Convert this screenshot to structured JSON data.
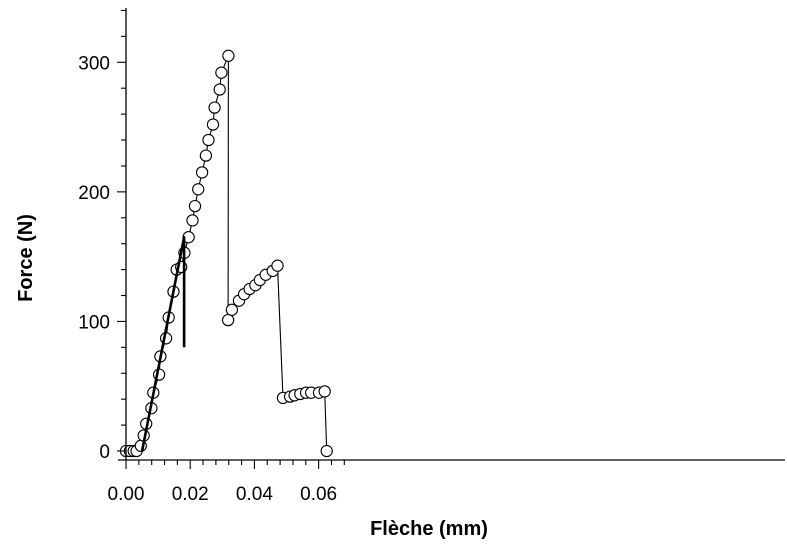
{
  "chart_data": {
    "type": "scatter",
    "xlabel": "Flèche (mm)",
    "ylabel": "Force (N)",
    "xlim": [
      0,
      0.068
    ],
    "ylim": [
      0,
      340
    ],
    "x_ticks": [
      "0.00",
      "0.02",
      "0.04",
      "0.06"
    ],
    "y_ticks": [
      "0",
      "100",
      "200",
      "300"
    ],
    "grid": false,
    "series": [
      {
        "style": "line+open-circle-markers",
        "color": "#000000",
        "points": [
          [
            0.0,
            0
          ],
          [
            0.0012,
            0
          ],
          [
            0.0024,
            0
          ],
          [
            0.0033,
            0
          ],
          [
            0.0046,
            4
          ],
          [
            0.0055,
            12
          ],
          [
            0.0063,
            21
          ],
          [
            0.0079,
            33
          ],
          [
            0.0085,
            45
          ],
          [
            0.0103,
            59
          ],
          [
            0.0107,
            73
          ],
          [
            0.0125,
            87
          ],
          [
            0.0133,
            103
          ],
          [
            0.0148,
            123
          ],
          [
            0.0158,
            140
          ],
          [
            0.0172,
            142
          ],
          [
            0.0182,
            153
          ],
          [
            0.0195,
            165
          ],
          [
            0.0207,
            178
          ],
          [
            0.0215,
            189
          ],
          [
            0.0225,
            202
          ],
          [
            0.0237,
            215
          ],
          [
            0.0249,
            228
          ],
          [
            0.0257,
            240
          ],
          [
            0.0271,
            252
          ],
          [
            0.0276,
            265
          ],
          [
            0.0292,
            279
          ],
          [
            0.0297,
            292
          ],
          [
            0.0319,
            305
          ],
          [
            0.0318,
            101
          ],
          [
            0.033,
            109
          ],
          [
            0.0352,
            116
          ],
          [
            0.0368,
            121
          ],
          [
            0.0385,
            125
          ],
          [
            0.0403,
            128
          ],
          [
            0.0417,
            132
          ],
          [
            0.0435,
            136
          ],
          [
            0.0457,
            139
          ],
          [
            0.0472,
            143
          ],
          [
            0.0489,
            41
          ],
          [
            0.0511,
            42
          ],
          [
            0.0525,
            43
          ],
          [
            0.0543,
            44
          ],
          [
            0.0561,
            45
          ],
          [
            0.0577,
            45
          ],
          [
            0.0601,
            45
          ],
          [
            0.0619,
            46
          ],
          [
            0.0625,
            0
          ]
        ]
      },
      {
        "style": "bold-line",
        "color": "#000000",
        "points": [
          [
            0.005,
            0
          ],
          [
            0.0181,
            165
          ],
          [
            0.0181,
            80
          ]
        ]
      }
    ]
  }
}
